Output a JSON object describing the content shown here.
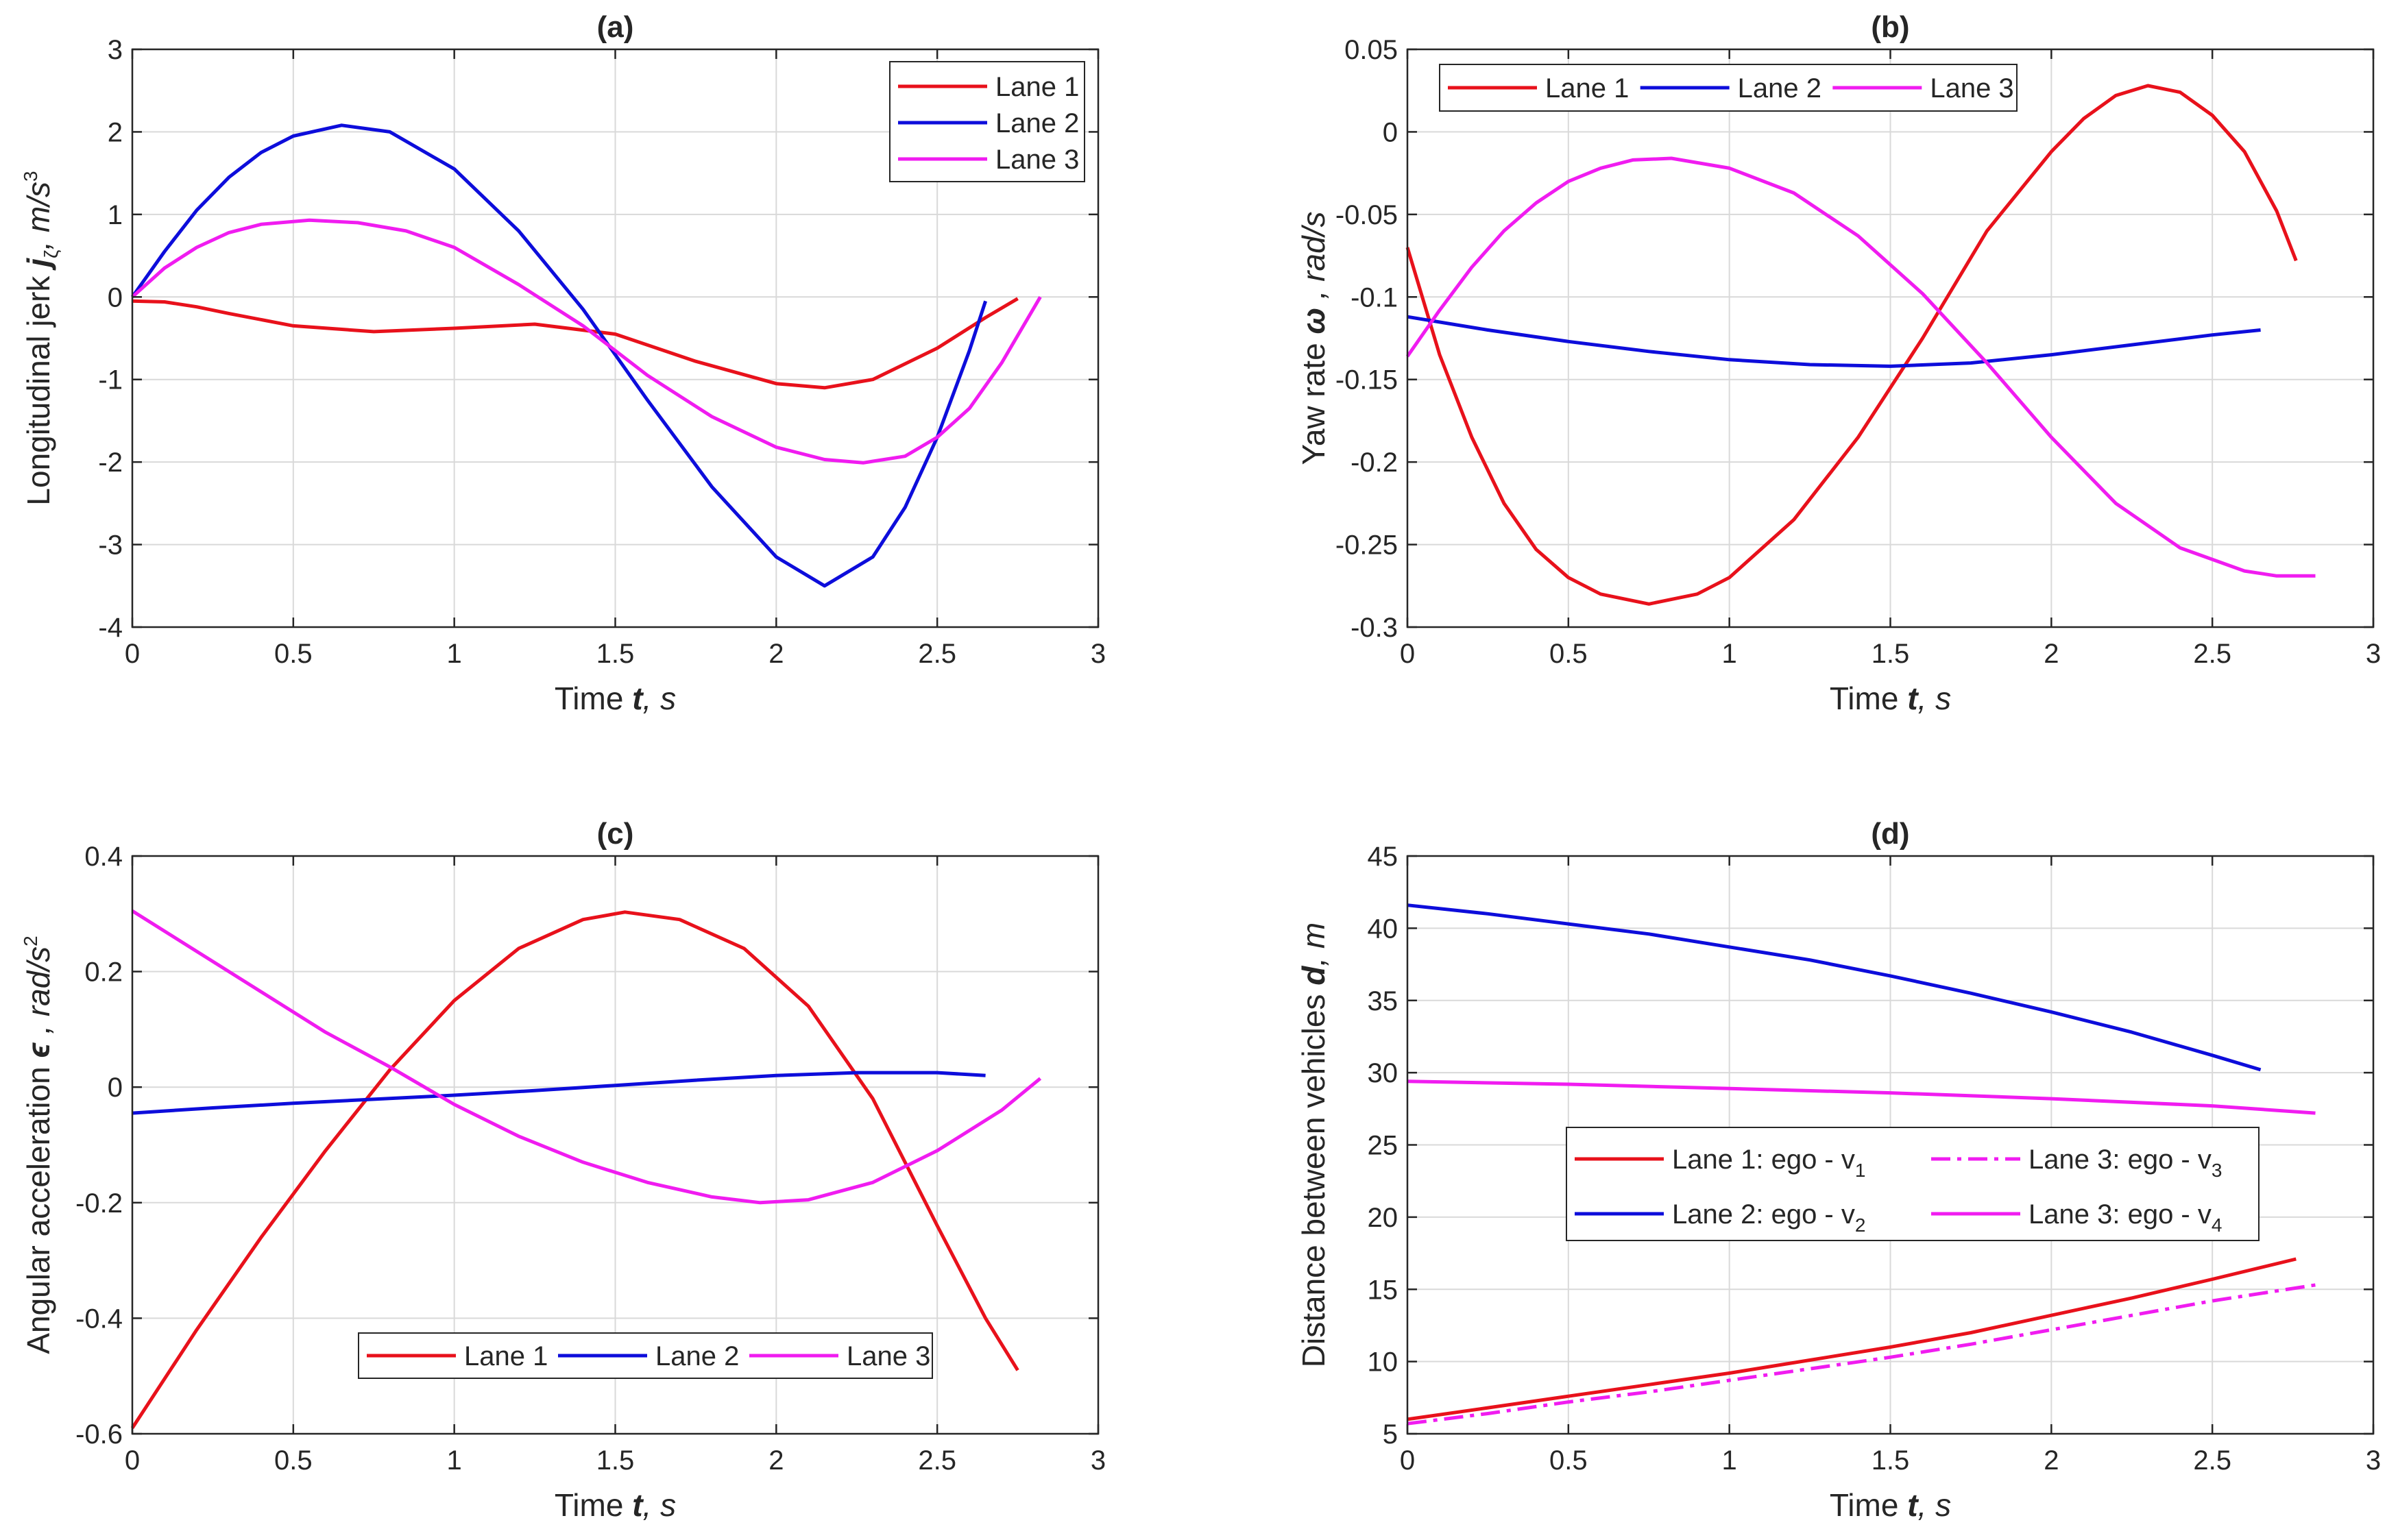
{
  "chart_data": [
    {
      "type": "line",
      "title": "(a)",
      "ylabel_text": "Longitudinal jerk ",
      "ylabel_symbol": "j",
      "ylabel_sub": "ζ",
      "ylabel_units": ", m/s",
      "ylabel_sup": "3",
      "xlabel_text": "Time ",
      "xlabel_symbol": "t",
      "xlabel_units": ", s",
      "xlim": [
        0,
        3
      ],
      "ylim": [
        -4,
        3
      ],
      "xticks": [
        0,
        0.5,
        1,
        1.5,
        2,
        2.5,
        3
      ],
      "xtick_labels": [
        "0",
        "0.5",
        "1",
        "1.5",
        "2",
        "2.5",
        "3"
      ],
      "yticks": [
        -4,
        -3,
        -2,
        -1,
        0,
        1,
        2,
        3
      ],
      "ytick_labels": [
        "-4",
        "-3",
        "-2",
        "-1",
        "0",
        "1",
        "2",
        "3"
      ],
      "legend_position": "top-right",
      "legend_layout": "vertical",
      "series": [
        {
          "name": "Lane 1",
          "color": "#e8111b",
          "dash": "solid",
          "x": [
            0,
            0.1,
            0.2,
            0.3,
            0.5,
            0.75,
            1.0,
            1.25,
            1.5,
            1.75,
            2.0,
            2.15,
            2.3,
            2.5,
            2.65,
            2.75
          ],
          "y": [
            -0.05,
            -0.06,
            -0.12,
            -0.2,
            -0.35,
            -0.42,
            -0.38,
            -0.33,
            -0.45,
            -0.78,
            -1.05,
            -1.1,
            -1.0,
            -0.62,
            -0.25,
            -0.02
          ]
        },
        {
          "name": "Lane 2",
          "color": "#0d0ddb",
          "dash": "solid",
          "x": [
            0,
            0.1,
            0.2,
            0.3,
            0.4,
            0.5,
            0.65,
            0.8,
            1.0,
            1.2,
            1.4,
            1.5,
            1.6,
            1.8,
            2.0,
            2.15,
            2.3,
            2.4,
            2.5,
            2.6,
            2.65
          ],
          "y": [
            0,
            0.55,
            1.05,
            1.45,
            1.75,
            1.95,
            2.08,
            2.0,
            1.55,
            0.8,
            -0.15,
            -0.7,
            -1.25,
            -2.3,
            -3.15,
            -3.5,
            -3.15,
            -2.55,
            -1.7,
            -0.65,
            -0.05
          ]
        },
        {
          "name": "Lane 3",
          "color": "#f01cf0",
          "dash": "solid",
          "x": [
            0,
            0.1,
            0.2,
            0.3,
            0.4,
            0.55,
            0.7,
            0.85,
            1.0,
            1.2,
            1.4,
            1.6,
            1.8,
            2.0,
            2.15,
            2.27,
            2.4,
            2.5,
            2.6,
            2.7,
            2.82
          ],
          "y": [
            0,
            0.35,
            0.6,
            0.78,
            0.88,
            0.93,
            0.9,
            0.8,
            0.6,
            0.15,
            -0.35,
            -0.95,
            -1.45,
            -1.82,
            -1.97,
            -2.01,
            -1.93,
            -1.7,
            -1.35,
            -0.8,
            0
          ]
        }
      ]
    },
    {
      "type": "line",
      "title": "(b)",
      "ylabel_text": "Yaw rate ",
      "ylabel_symbol": "ω",
      "ylabel_sub": "",
      "ylabel_units": " , rad/s",
      "ylabel_sup": "",
      "xlabel_text": "Time ",
      "xlabel_symbol": "t",
      "xlabel_units": ", s",
      "xlim": [
        0,
        3
      ],
      "ylim": [
        -0.3,
        0.05
      ],
      "xticks": [
        0,
        0.5,
        1,
        1.5,
        2,
        2.5,
        3
      ],
      "xtick_labels": [
        "0",
        "0.5",
        "1",
        "1.5",
        "2",
        "2.5",
        "3"
      ],
      "yticks": [
        -0.3,
        -0.25,
        -0.2,
        -0.15,
        -0.1,
        -0.05,
        0,
        0.05
      ],
      "ytick_labels": [
        "-0.3",
        "-0.25",
        "-0.2",
        "-0.15",
        "-0.1",
        "-0.05",
        "0",
        "0.05"
      ],
      "legend_position": "top-left",
      "legend_layout": "horizontal",
      "series": [
        {
          "name": "Lane 1",
          "color": "#e8111b",
          "dash": "solid",
          "x": [
            0,
            0.1,
            0.2,
            0.3,
            0.4,
            0.5,
            0.6,
            0.75,
            0.9,
            1.0,
            1.2,
            1.4,
            1.5,
            1.6,
            1.8,
            2.0,
            2.1,
            2.2,
            2.3,
            2.4,
            2.5,
            2.6,
            2.7,
            2.76
          ],
          "y": [
            -0.07,
            -0.135,
            -0.185,
            -0.225,
            -0.253,
            -0.27,
            -0.28,
            -0.286,
            -0.28,
            -0.27,
            -0.235,
            -0.185,
            -0.155,
            -0.125,
            -0.06,
            -0.012,
            0.008,
            0.022,
            0.028,
            0.024,
            0.01,
            -0.012,
            -0.048,
            -0.078
          ]
        },
        {
          "name": "Lane 2",
          "color": "#0d0ddb",
          "dash": "solid",
          "x": [
            0,
            0.25,
            0.5,
            0.75,
            1.0,
            1.25,
            1.5,
            1.75,
            2.0,
            2.25,
            2.5,
            2.65
          ],
          "y": [
            -0.112,
            -0.12,
            -0.127,
            -0.133,
            -0.138,
            -0.141,
            -0.142,
            -0.14,
            -0.135,
            -0.129,
            -0.123,
            -0.12
          ]
        },
        {
          "name": "Lane 3",
          "color": "#f01cf0",
          "dash": "solid",
          "x": [
            0,
            0.1,
            0.2,
            0.3,
            0.4,
            0.5,
            0.6,
            0.7,
            0.82,
            1.0,
            1.2,
            1.4,
            1.6,
            1.8,
            2.0,
            2.2,
            2.4,
            2.6,
            2.7,
            2.82
          ],
          "y": [
            -0.136,
            -0.108,
            -0.082,
            -0.06,
            -0.043,
            -0.03,
            -0.022,
            -0.017,
            -0.016,
            -0.022,
            -0.037,
            -0.063,
            -0.098,
            -0.14,
            -0.185,
            -0.225,
            -0.252,
            -0.266,
            -0.269,
            -0.269
          ]
        }
      ]
    },
    {
      "type": "line",
      "title": "(c)",
      "ylabel_text": "Angular acceleration ",
      "ylabel_symbol": "ϵ",
      "ylabel_sub": "",
      "ylabel_units": " , rad/s",
      "ylabel_sup": "2",
      "xlabel_text": "Time ",
      "xlabel_symbol": "t",
      "xlabel_units": ", s",
      "xlim": [
        0,
        3
      ],
      "ylim": [
        -0.6,
        0.4
      ],
      "xticks": [
        0,
        0.5,
        1,
        1.5,
        2,
        2.5,
        3
      ],
      "xtick_labels": [
        "0",
        "0.5",
        "1",
        "1.5",
        "2",
        "2.5",
        "3"
      ],
      "yticks": [
        -0.6,
        -0.4,
        -0.2,
        0,
        0.2,
        0.4
      ],
      "ytick_labels": [
        "-0.6",
        "-0.4",
        "-0.2",
        "0",
        "0.2",
        "0.4"
      ],
      "legend_position": "bottom",
      "legend_layout": "horizontal",
      "series": [
        {
          "name": "Lane 1",
          "color": "#e8111b",
          "dash": "solid",
          "x": [
            0,
            0.2,
            0.4,
            0.6,
            0.8,
            1.0,
            1.2,
            1.4,
            1.53,
            1.7,
            1.9,
            2.1,
            2.3,
            2.5,
            2.65,
            2.75
          ],
          "y": [
            -0.59,
            -0.42,
            -0.26,
            -0.11,
            0.03,
            0.15,
            0.24,
            0.29,
            0.303,
            0.29,
            0.24,
            0.14,
            -0.02,
            -0.24,
            -0.4,
            -0.49
          ]
        },
        {
          "name": "Lane 2",
          "color": "#0d0ddb",
          "dash": "solid",
          "x": [
            0,
            0.25,
            0.5,
            0.75,
            1.0,
            1.25,
            1.5,
            1.75,
            2.0,
            2.25,
            2.5,
            2.65
          ],
          "y": [
            -0.045,
            -0.036,
            -0.028,
            -0.021,
            -0.014,
            -0.006,
            0.003,
            0.012,
            0.02,
            0.025,
            0.025,
            0.02
          ]
        },
        {
          "name": "Lane 3",
          "color": "#f01cf0",
          "dash": "solid",
          "x": [
            0,
            0.2,
            0.4,
            0.6,
            0.8,
            1.0,
            1.2,
            1.4,
            1.6,
            1.8,
            1.95,
            2.1,
            2.3,
            2.5,
            2.7,
            2.82
          ],
          "y": [
            0.305,
            0.235,
            0.165,
            0.095,
            0.035,
            -0.03,
            -0.085,
            -0.13,
            -0.165,
            -0.19,
            -0.2,
            -0.195,
            -0.165,
            -0.11,
            -0.04,
            0.015
          ]
        }
      ]
    },
    {
      "type": "line",
      "title": "(d)",
      "ylabel_text": "Distance between vehicles ",
      "ylabel_symbol": "d",
      "ylabel_sub": "",
      "ylabel_units": ", m",
      "ylabel_sup": "",
      "xlabel_text": "Time ",
      "xlabel_symbol": "t",
      "xlabel_units": ", s",
      "xlim": [
        0,
        3
      ],
      "ylim": [
        5,
        45
      ],
      "xticks": [
        0,
        0.5,
        1,
        1.5,
        2,
        2.5,
        3
      ],
      "xtick_labels": [
        "0",
        "0.5",
        "1",
        "1.5",
        "2",
        "2.5",
        "3"
      ],
      "yticks": [
        5,
        10,
        15,
        20,
        25,
        30,
        35,
        40,
        45
      ],
      "ytick_labels": [
        "5",
        "10",
        "15",
        "20",
        "25",
        "30",
        "35",
        "40",
        "45"
      ],
      "legend_position": "middle-left",
      "legend_layout": "grid",
      "series": [
        {
          "name": "Lane 1: ego - v",
          "sub": "1",
          "color": "#e8111b",
          "dash": "solid",
          "x": [
            0,
            0.25,
            0.5,
            0.75,
            1.0,
            1.25,
            1.5,
            1.75,
            2.0,
            2.25,
            2.5,
            2.76
          ],
          "y": [
            6.0,
            6.8,
            7.6,
            8.4,
            9.2,
            10.1,
            11.0,
            12.0,
            13.2,
            14.4,
            15.7,
            17.1
          ]
        },
        {
          "name": "Lane 3: ego - v",
          "sub": "3",
          "color": "#f01cf0",
          "dash": "dashdot",
          "x": [
            0,
            0.25,
            0.5,
            0.75,
            1.0,
            1.25,
            1.5,
            1.75,
            2.0,
            2.25,
            2.5,
            2.82
          ],
          "y": [
            5.7,
            6.4,
            7.2,
            7.9,
            8.7,
            9.5,
            10.3,
            11.2,
            12.2,
            13.2,
            14.2,
            15.3
          ]
        },
        {
          "name": "Lane 2: ego - v",
          "sub": "2",
          "color": "#0d0ddb",
          "dash": "solid",
          "x": [
            0,
            0.25,
            0.5,
            0.75,
            1.0,
            1.25,
            1.5,
            1.75,
            2.0,
            2.25,
            2.5,
            2.65
          ],
          "y": [
            41.6,
            41.0,
            40.3,
            39.6,
            38.7,
            37.8,
            36.7,
            35.5,
            34.2,
            32.8,
            31.2,
            30.2
          ]
        },
        {
          "name": "Lane 3: ego - v",
          "sub": "4",
          "color": "#f01cf0",
          "dash": "solid",
          "x": [
            0,
            0.5,
            1.0,
            1.5,
            2.0,
            2.5,
            2.82
          ],
          "y": [
            29.4,
            29.2,
            28.9,
            28.6,
            28.2,
            27.7,
            27.2
          ]
        }
      ]
    }
  ]
}
